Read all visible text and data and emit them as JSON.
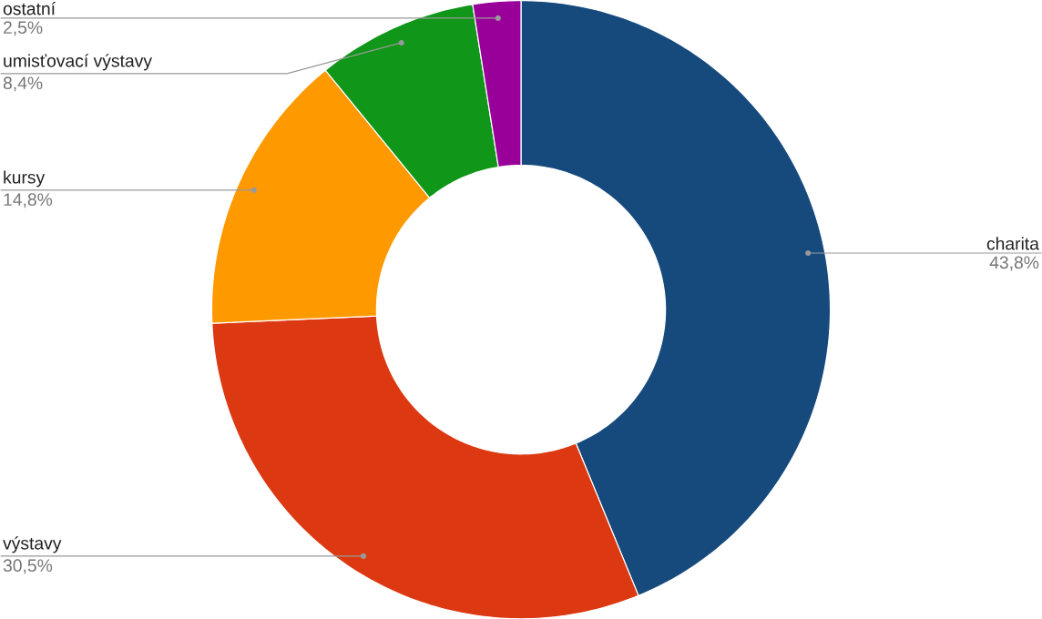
{
  "chart_data": {
    "type": "donut",
    "categories": [
      "charita",
      "výstavy",
      "kursy",
      "umisťovací výstavy",
      "ostatní"
    ],
    "values": [
      43.8,
      30.5,
      14.8,
      8.4,
      2.5
    ],
    "colors": [
      "#174a7c",
      "#dc3912",
      "#ff9900",
      "#109618",
      "#990099"
    ],
    "value_labels": [
      "43,8%",
      "30,5%",
      "14,8%",
      "8,4%",
      "2,5%"
    ]
  }
}
